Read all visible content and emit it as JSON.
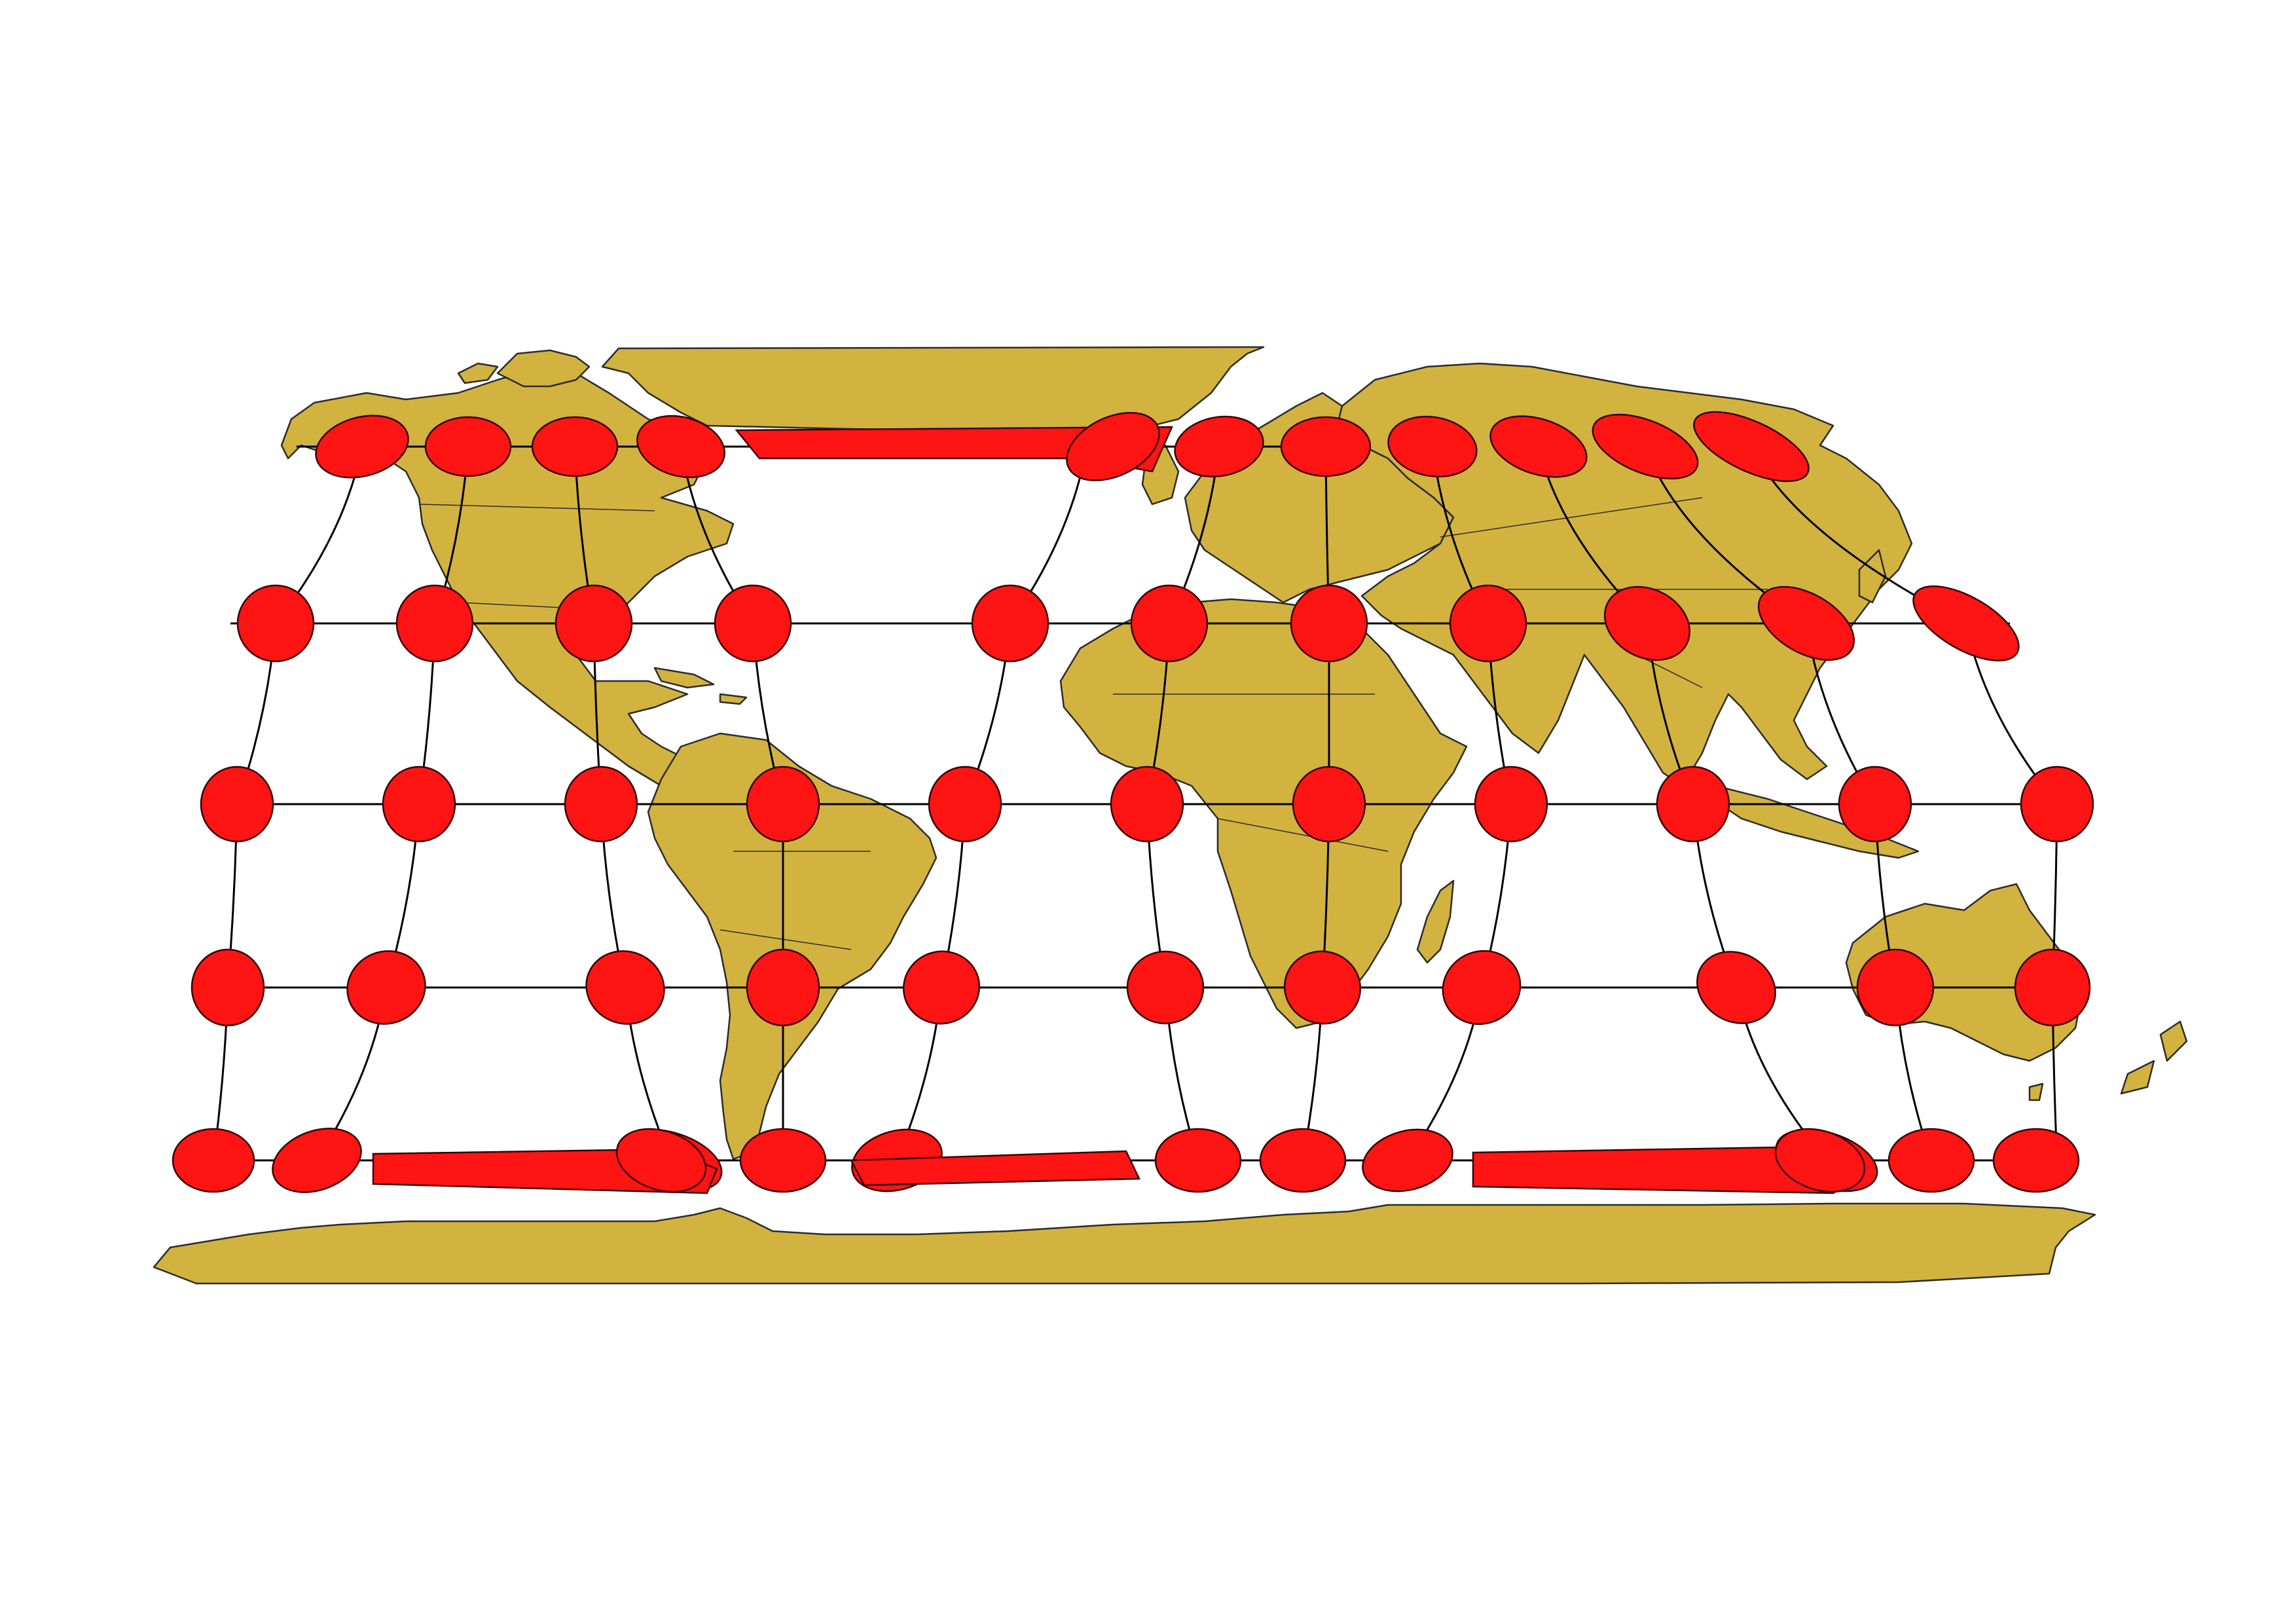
{
  "map": {
    "colors": {
      "background": "#ffffff",
      "land": "#d2b33f",
      "land_outline": "#2b2b2b",
      "indicatrix_fill": "#ff1414",
      "indicatrix_outline": "#3a0000",
      "graticule": "#000000"
    },
    "graticule": {
      "parallels_deg": [
        60,
        30,
        0,
        -30,
        -60
      ],
      "meridians_deg": [
        -150,
        -120,
        -90,
        -60,
        -30,
        0,
        30,
        60,
        90,
        120,
        150
      ]
    },
    "regions": [
      "north-america",
      "greenland",
      "south-america",
      "europe",
      "africa",
      "madagascar",
      "asia",
      "australia",
      "new-zealand",
      "antarctica"
    ]
  }
}
